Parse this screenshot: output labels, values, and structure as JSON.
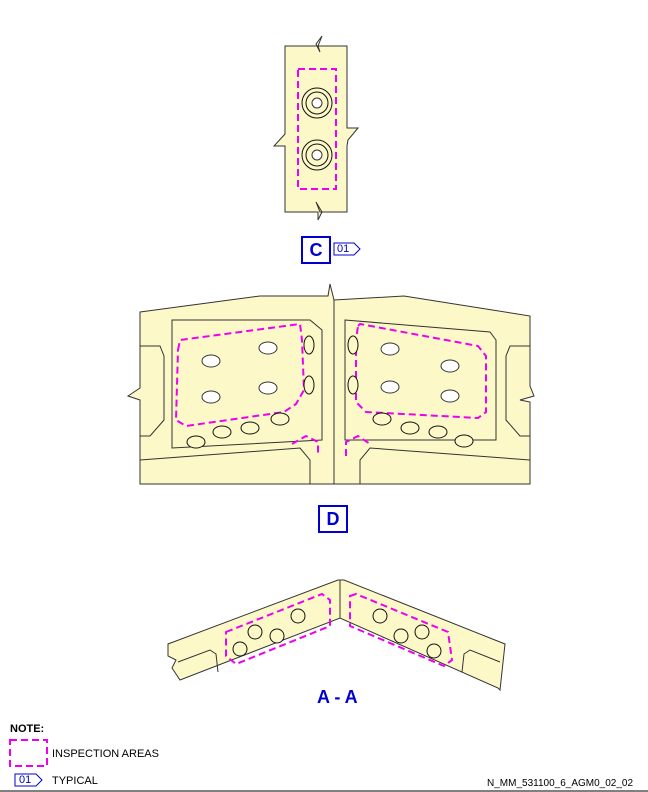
{
  "colors": {
    "part_fill": "#fcf8c8",
    "outline": "#333333",
    "inspection": "#ee00ee",
    "callout": "#0000cc"
  },
  "views": {
    "c_label": "C",
    "d_label": "D",
    "section_label": "A - A"
  },
  "tag_typical": "01",
  "note": {
    "heading": "NOTE:",
    "inspection_text": "INSPECTION AREAS",
    "tag": "01",
    "typical_text": "TYPICAL"
  },
  "figure_id": "N_MM_531100_6_AGM0_02_02"
}
